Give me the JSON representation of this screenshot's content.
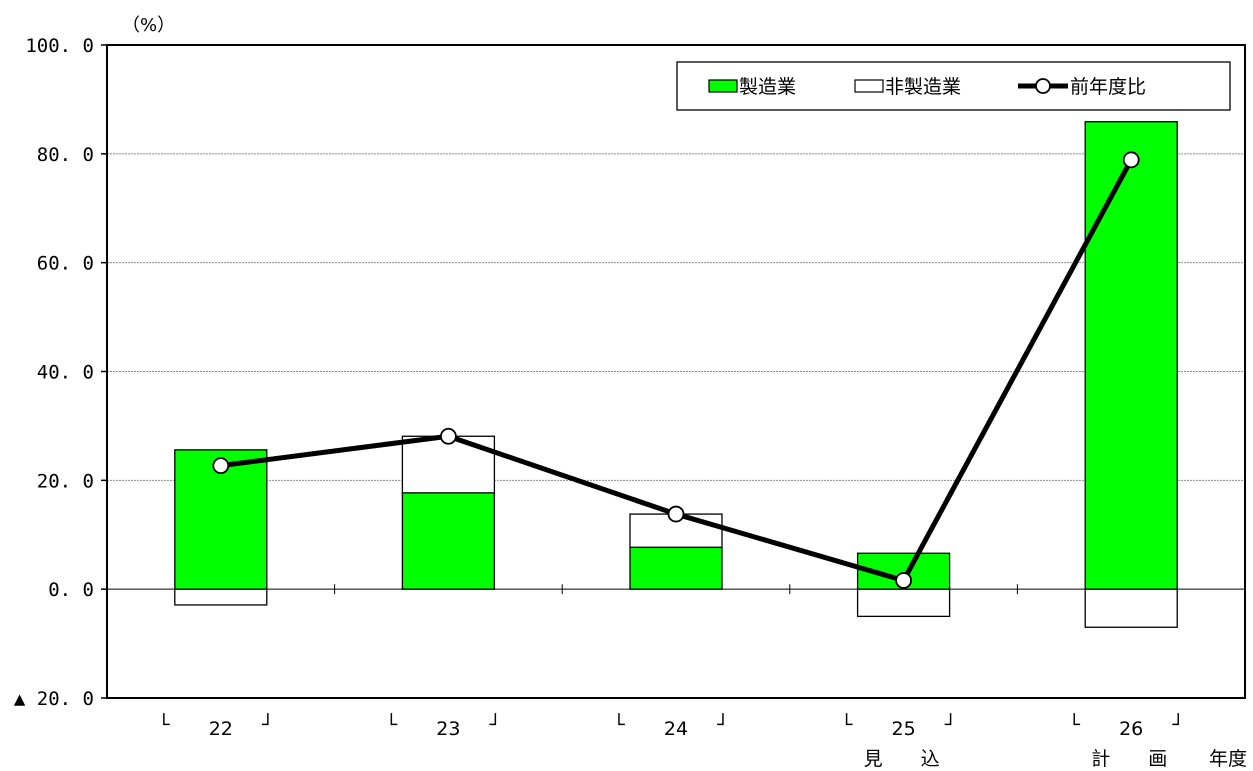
{
  "chart_data": {
    "type": "bar",
    "unit_label": "（%）",
    "x_axis_end_label": "年度",
    "ylim": [
      -20,
      100
    ],
    "y_ticks": [
      {
        "value": 100,
        "label": "100. 0"
      },
      {
        "value": 80,
        "label": "80. 0"
      },
      {
        "value": 60,
        "label": "60. 0"
      },
      {
        "value": 40,
        "label": "40. 0"
      },
      {
        "value": 20,
        "label": "20. 0"
      },
      {
        "value": 0,
        "label": "0. 0"
      },
      {
        "value": -20,
        "label": "▲ 20. 0"
      }
    ],
    "grid": true,
    "legend_position": "top-right",
    "categories": [
      {
        "left": "└",
        "label": "22",
        "right": "┘",
        "sub": ""
      },
      {
        "left": "└",
        "label": "23",
        "right": "┘",
        "sub": ""
      },
      {
        "left": "└",
        "label": "24",
        "right": "┘",
        "sub": ""
      },
      {
        "left": "└",
        "label": "25",
        "right": "┘",
        "sub": "見　　込"
      },
      {
        "left": "└",
        "label": "26",
        "right": "┘",
        "sub": "計　　画"
      }
    ],
    "series": [
      {
        "name": "製造業",
        "kind": "stacked-bar",
        "color": "#00ff00",
        "values": [
          25.6,
          17.7,
          7.7,
          6.6,
          85.9
        ]
      },
      {
        "name": "非製造業",
        "kind": "stacked-bar",
        "color": "#ffffff",
        "values": [
          -2.9,
          10.4,
          6.1,
          -5.0,
          -7.0
        ]
      },
      {
        "name": "前年度比",
        "kind": "line",
        "color": "#000000",
        "values": [
          22.7,
          28.1,
          13.8,
          1.6,
          78.9
        ]
      }
    ]
  }
}
